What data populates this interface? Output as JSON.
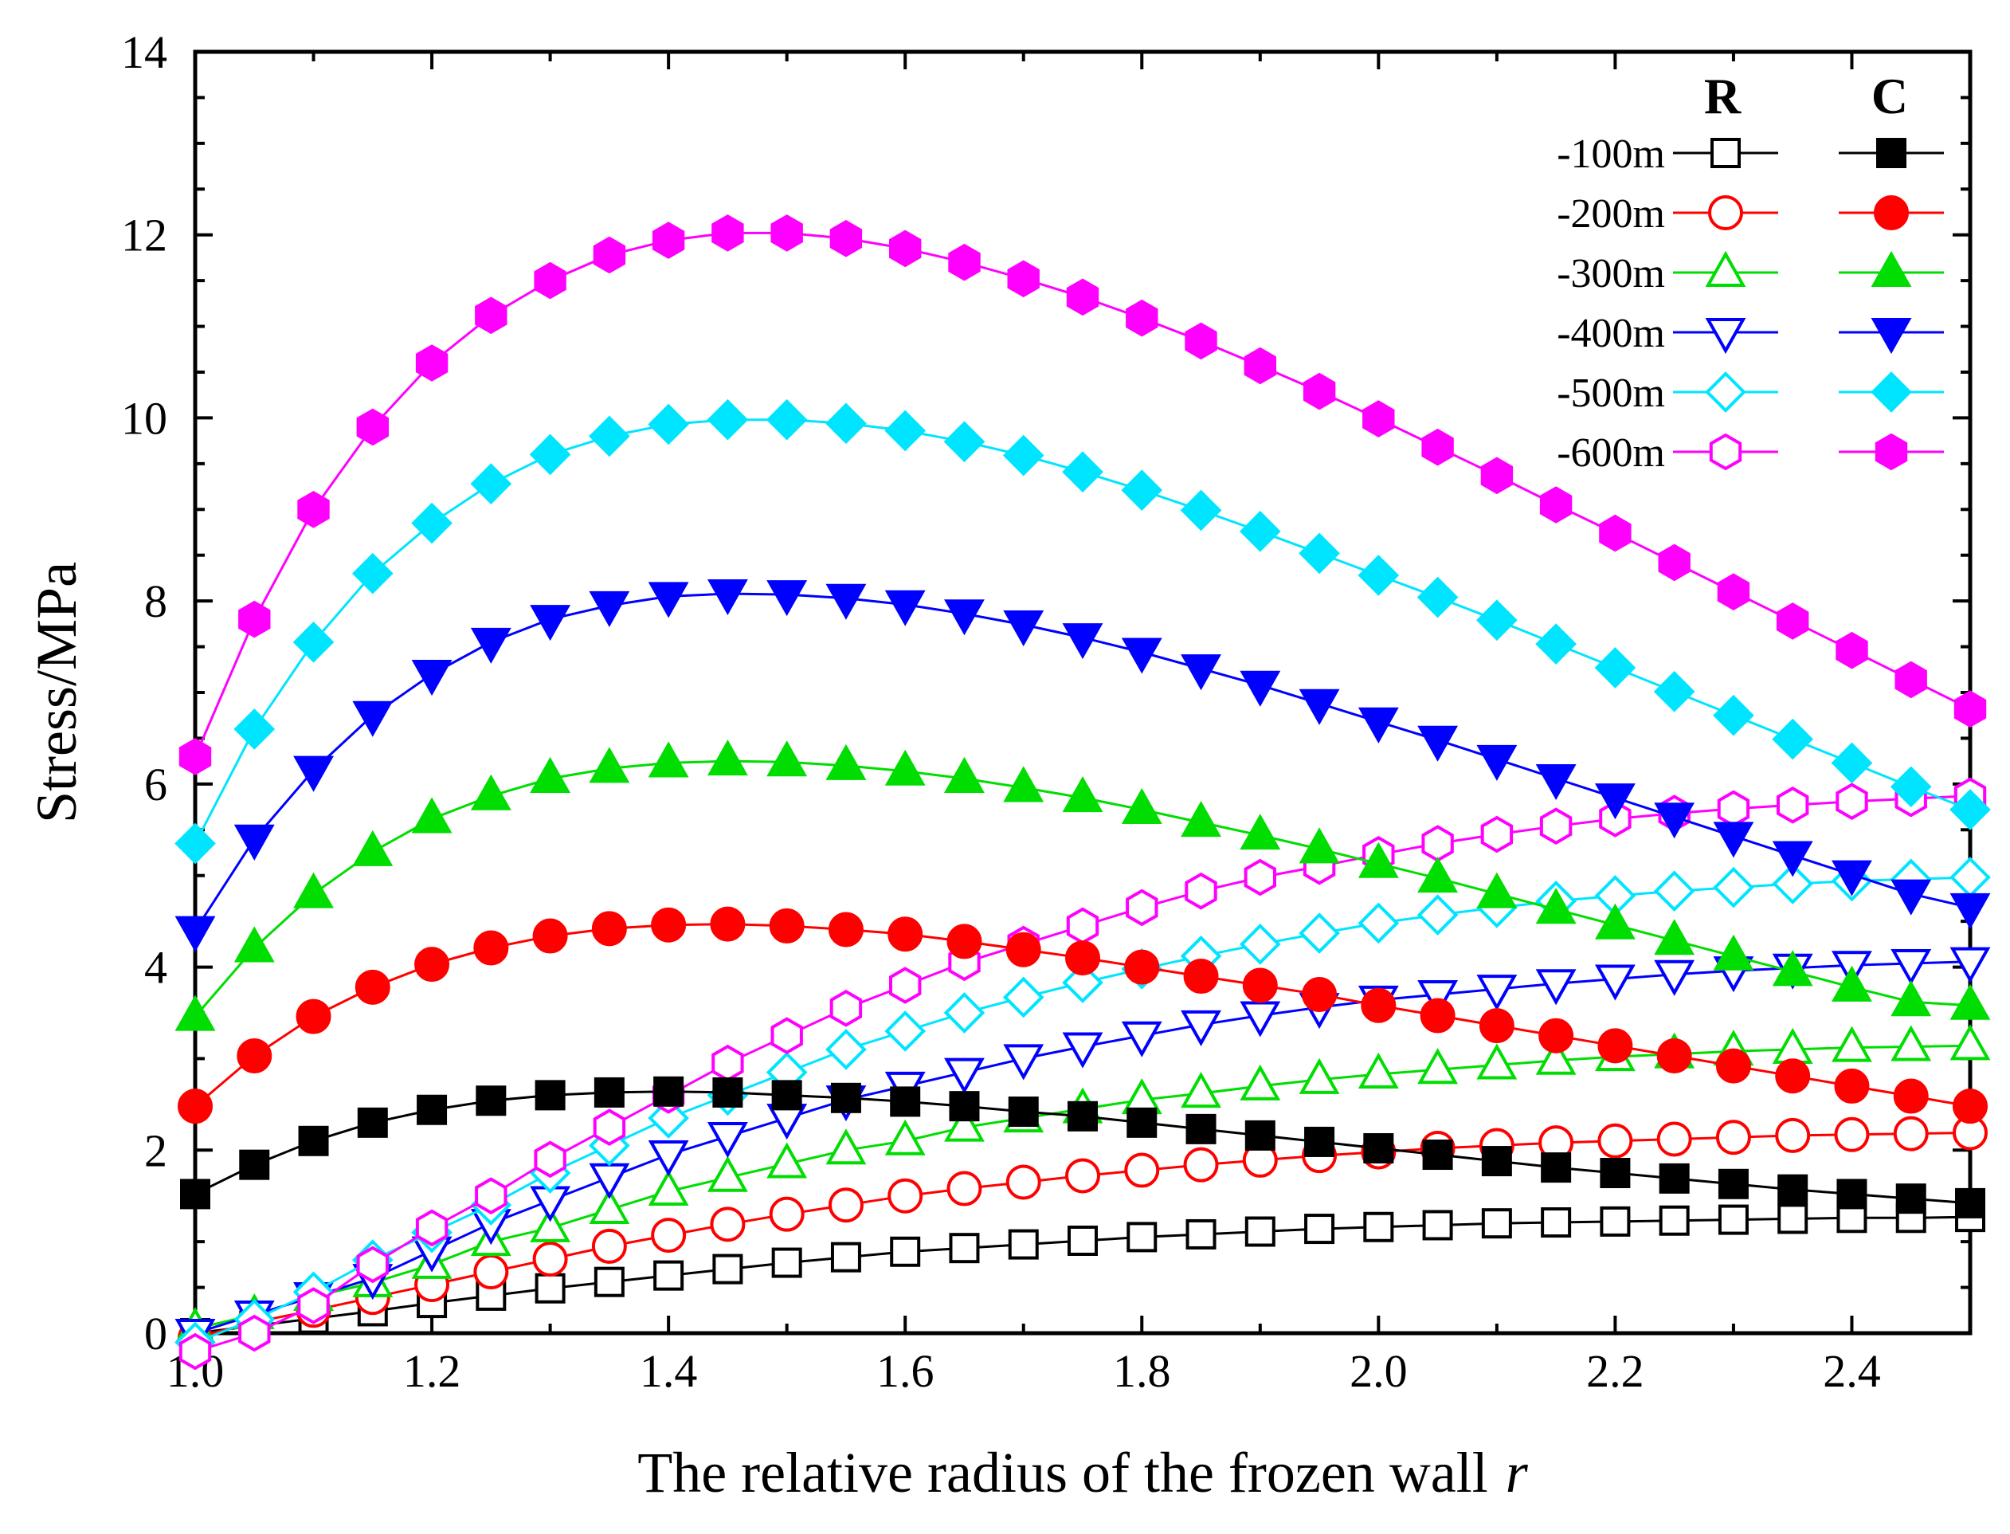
{
  "chart_data": {
    "type": "line",
    "xlabel": "The relative radius of the frozen wall",
    "xlabel_italic": "r",
    "ylabel": "Stress/MPa",
    "xlim": [
      1.0,
      2.5
    ],
    "ylim": [
      0,
      14
    ],
    "xticks": [
      "1.0",
      "1.2",
      "1.4",
      "1.6",
      "1.8",
      "2.0",
      "2.2",
      "2.4"
    ],
    "yticks": [
      "0",
      "2",
      "4",
      "6",
      "8",
      "10",
      "12",
      "14"
    ],
    "grid": false,
    "legend_position": "top-right",
    "legend_headers": [
      "R",
      "C"
    ],
    "x": [
      1.0,
      1.05,
      1.1,
      1.15,
      1.2,
      1.25,
      1.3,
      1.35,
      1.4,
      1.45,
      1.5,
      1.55,
      1.6,
      1.65,
      1.7,
      1.75,
      1.8,
      1.85,
      1.9,
      1.95,
      2.0,
      2.05,
      2.1,
      2.15,
      2.2,
      2.25,
      2.3,
      2.35,
      2.4,
      2.45,
      2.5
    ],
    "depths": [
      {
        "label": "-100m",
        "color": "#000000",
        "shape": "square"
      },
      {
        "label": "-200m",
        "color": "#ff0000",
        "shape": "circle"
      },
      {
        "label": "-300m",
        "color": "#00dd00",
        "shape": "triangle-up"
      },
      {
        "label": "-400m",
        "color": "#0000ff",
        "shape": "triangle-down"
      },
      {
        "label": "-500m",
        "color": "#00e5ff",
        "shape": "diamond"
      },
      {
        "label": "-600m",
        "color": "#ff00ff",
        "shape": "hexagon"
      }
    ],
    "R_series": [
      [
        0.0,
        0.08,
        0.16,
        0.24,
        0.33,
        0.41,
        0.49,
        0.56,
        0.63,
        0.7,
        0.77,
        0.83,
        0.89,
        0.93,
        0.97,
        1.01,
        1.05,
        1.08,
        1.11,
        1.14,
        1.16,
        1.18,
        1.2,
        1.21,
        1.22,
        1.23,
        1.24,
        1.25,
        1.26,
        1.26,
        1.27
      ],
      [
        -0.05,
        0.12,
        0.25,
        0.39,
        0.53,
        0.67,
        0.81,
        0.95,
        1.07,
        1.19,
        1.3,
        1.4,
        1.5,
        1.58,
        1.65,
        1.72,
        1.78,
        1.84,
        1.89,
        1.94,
        1.98,
        2.02,
        2.05,
        2.08,
        2.1,
        2.12,
        2.14,
        2.16,
        2.17,
        2.18,
        2.19
      ],
      [
        0.05,
        0.2,
        0.4,
        0.55,
        0.75,
        1.0,
        1.15,
        1.35,
        1.55,
        1.7,
        1.85,
        2.0,
        2.1,
        2.25,
        2.35,
        2.45,
        2.55,
        2.62,
        2.7,
        2.77,
        2.83,
        2.88,
        2.93,
        2.98,
        3.02,
        3.05,
        3.08,
        3.1,
        3.12,
        3.13,
        3.14
      ],
      [
        0.0,
        0.2,
        0.4,
        0.6,
        0.9,
        1.2,
        1.45,
        1.7,
        1.95,
        2.15,
        2.35,
        2.55,
        2.7,
        2.85,
        3.0,
        3.13,
        3.25,
        3.37,
        3.47,
        3.56,
        3.64,
        3.7,
        3.76,
        3.82,
        3.87,
        3.92,
        3.96,
        3.99,
        4.02,
        4.04,
        4.06
      ],
      [
        -0.1,
        0.15,
        0.45,
        0.8,
        1.1,
        1.4,
        1.75,
        2.05,
        2.35,
        2.6,
        2.85,
        3.1,
        3.3,
        3.5,
        3.67,
        3.83,
        3.98,
        4.12,
        4.25,
        4.37,
        4.48,
        4.57,
        4.65,
        4.72,
        4.78,
        4.83,
        4.87,
        4.91,
        4.94,
        4.96,
        4.98
      ],
      [
        -0.2,
        0.0,
        0.3,
        0.75,
        1.15,
        1.5,
        1.9,
        2.25,
        2.6,
        2.95,
        3.25,
        3.55,
        3.8,
        4.05,
        4.25,
        4.45,
        4.65,
        4.83,
        4.98,
        5.1,
        5.23,
        5.35,
        5.45,
        5.54,
        5.62,
        5.68,
        5.73,
        5.77,
        5.81,
        5.84,
        5.87
      ]
    ],
    "C_series": [
      [
        1.52,
        1.84,
        2.1,
        2.3,
        2.44,
        2.54,
        2.6,
        2.63,
        2.64,
        2.63,
        2.6,
        2.57,
        2.53,
        2.48,
        2.42,
        2.37,
        2.3,
        2.23,
        2.16,
        2.09,
        2.02,
        1.95,
        1.88,
        1.81,
        1.75,
        1.69,
        1.63,
        1.57,
        1.52,
        1.47,
        1.42
      ],
      [
        2.48,
        3.03,
        3.46,
        3.78,
        4.03,
        4.21,
        4.34,
        4.42,
        4.46,
        4.47,
        4.45,
        4.41,
        4.36,
        4.28,
        4.19,
        4.1,
        4.0,
        3.9,
        3.8,
        3.7,
        3.58,
        3.47,
        3.36,
        3.25,
        3.14,
        3.03,
        2.92,
        2.81,
        2.7,
        2.59,
        2.48
      ],
      [
        3.46,
        4.21,
        4.8,
        5.26,
        5.62,
        5.87,
        6.06,
        6.17,
        6.23,
        6.25,
        6.24,
        6.2,
        6.14,
        6.06,
        5.96,
        5.85,
        5.72,
        5.58,
        5.44,
        5.29,
        5.13,
        4.97,
        4.8,
        4.63,
        4.46,
        4.29,
        4.12,
        3.95,
        3.78,
        3.62,
        3.58
      ],
      [
        4.4,
        5.4,
        6.15,
        6.75,
        7.2,
        7.55,
        7.8,
        7.95,
        8.05,
        8.08,
        8.07,
        8.03,
        7.96,
        7.86,
        7.74,
        7.6,
        7.44,
        7.26,
        7.08,
        6.88,
        6.68,
        6.48,
        6.27,
        6.06,
        5.85,
        5.64,
        5.43,
        5.22,
        5.01,
        4.8,
        4.65
      ],
      [
        5.35,
        6.6,
        7.55,
        8.3,
        8.85,
        9.28,
        9.6,
        9.8,
        9.93,
        9.98,
        9.98,
        9.94,
        9.86,
        9.74,
        9.59,
        9.41,
        9.21,
        8.99,
        8.76,
        8.52,
        8.28,
        8.04,
        7.79,
        7.53,
        7.27,
        7.01,
        6.75,
        6.49,
        6.23,
        5.97,
        5.72
      ],
      [
        6.3,
        7.8,
        9.0,
        9.9,
        10.6,
        11.12,
        11.5,
        11.78,
        11.94,
        12.02,
        12.02,
        11.96,
        11.85,
        11.7,
        11.52,
        11.32,
        11.09,
        10.84,
        10.57,
        10.29,
        9.99,
        9.68,
        9.37,
        9.05,
        8.74,
        8.42,
        8.1,
        7.78,
        7.46,
        7.14,
        6.82
      ]
    ]
  }
}
